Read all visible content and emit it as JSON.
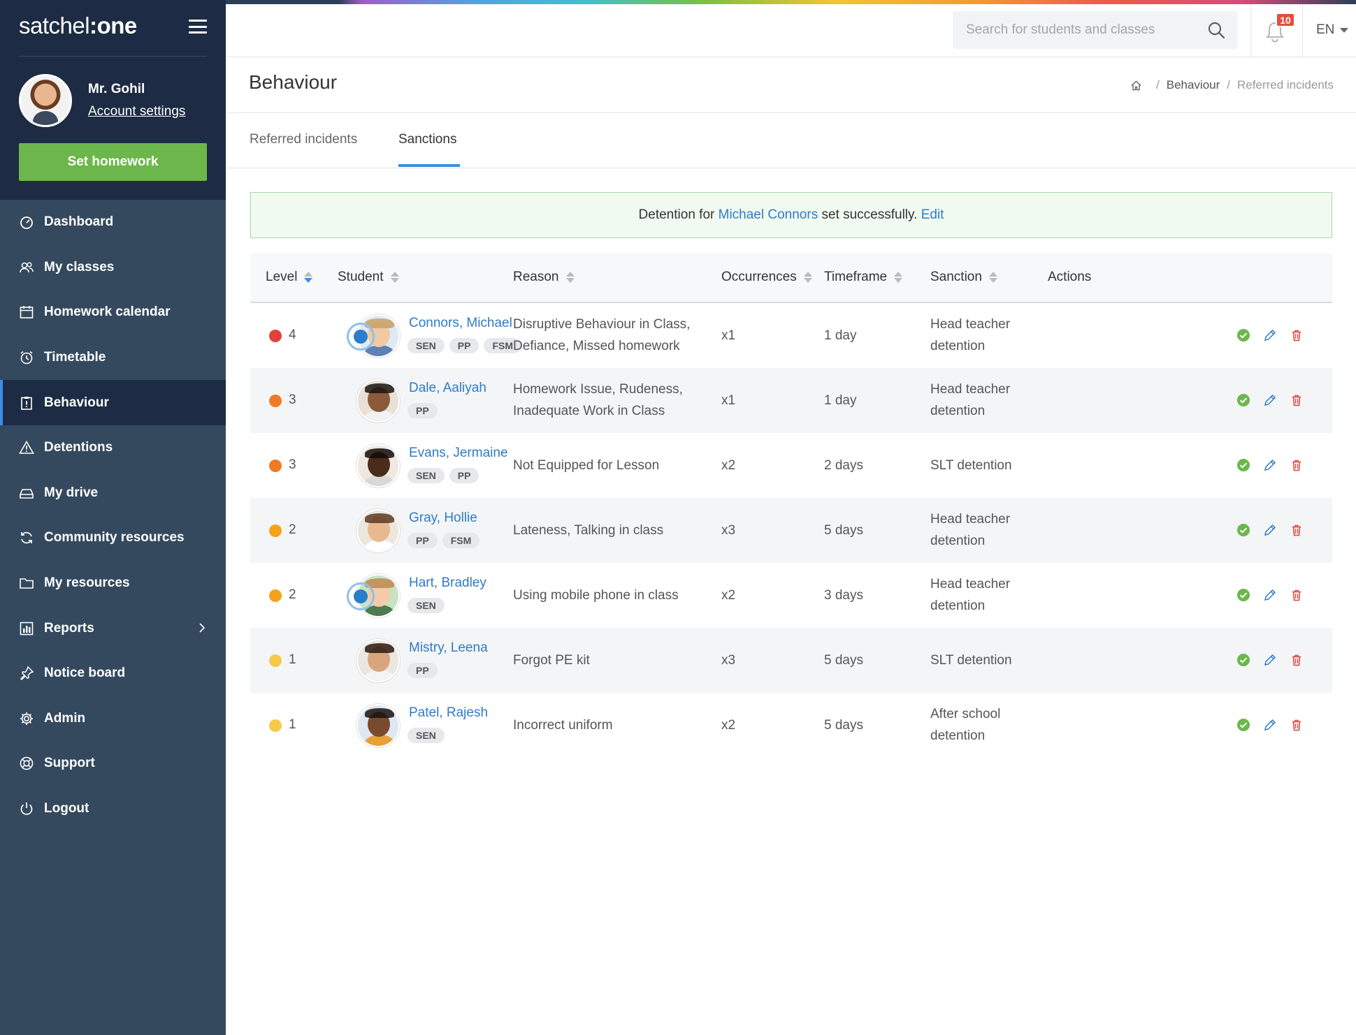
{
  "app": {
    "logo_light": "satchel",
    "logo_sep": ":",
    "logo_bold": "one"
  },
  "user": {
    "name": "Mr. Gohil",
    "account_link": "Account settings"
  },
  "sidebar": {
    "cta": "Set homework",
    "items": [
      {
        "label": "Dashboard",
        "icon": "dashboard-icon"
      },
      {
        "label": "My classes",
        "icon": "users-icon"
      },
      {
        "label": "Homework calendar",
        "icon": "calendar-icon"
      },
      {
        "label": "Timetable",
        "icon": "alarm-clock-icon"
      },
      {
        "label": "Behaviour",
        "icon": "clipboard-icon",
        "active": true
      },
      {
        "label": "Detentions",
        "icon": "warning-icon"
      },
      {
        "label": "My drive",
        "icon": "drive-icon"
      },
      {
        "label": "Community resources",
        "icon": "refresh-icon"
      },
      {
        "label": "My resources",
        "icon": "folder-icon"
      },
      {
        "label": "Reports",
        "icon": "chart-icon",
        "has_chevron": true
      },
      {
        "label": "Notice board",
        "icon": "pin-icon"
      },
      {
        "label": "Admin",
        "icon": "gear-icon"
      },
      {
        "label": "Support",
        "icon": "lifebuoy-icon"
      },
      {
        "label": "Logout",
        "icon": "power-icon"
      }
    ]
  },
  "topbar": {
    "search_placeholder": "Search for students and classes",
    "notification_count": "10",
    "language": "EN"
  },
  "header": {
    "title": "Behaviour",
    "breadcrumb": [
      "Behaviour",
      "Referred incidents"
    ]
  },
  "tabs": [
    {
      "label": "Referred incidents",
      "active": false
    },
    {
      "label": "Sanctions",
      "active": true
    }
  ],
  "alert": {
    "prefix": "Detention for ",
    "student": "Michael Connors",
    "suffix": " set successfully. ",
    "link": "Edit"
  },
  "table": {
    "columns": [
      "Level",
      "Student",
      "Reason",
      "Occurrences",
      "Timeframe",
      "Sanction",
      "Actions"
    ],
    "rows": [
      {
        "level": "4",
        "level_color": "#e0413a",
        "student": "Connors, Michael",
        "tags": [
          "SEN",
          "PP",
          "FSM"
        ],
        "sen": true,
        "reason": [
          "Disruptive Behaviour in Class,",
          "Defiance, Missed homework"
        ],
        "occurrences": "x1",
        "timeframe": "1 day",
        "sanction": [
          "Head teacher",
          "detention"
        ]
      },
      {
        "level": "3",
        "level_color": "#f07a24",
        "student": "Dale, Aaliyah",
        "tags": [
          "PP"
        ],
        "sen": false,
        "reason": [
          "Homework Issue, Rudeness,",
          "Inadequate Work in Class"
        ],
        "occurrences": "x1",
        "timeframe": "1 day",
        "sanction": [
          "Head teacher",
          "detention"
        ]
      },
      {
        "level": "3",
        "level_color": "#f07a24",
        "student": "Evans, Jermaine",
        "tags": [
          "SEN",
          "PP"
        ],
        "sen": false,
        "reason": [
          "Not Equipped for Lesson"
        ],
        "occurrences": "x2",
        "timeframe": "2 days",
        "sanction": [
          "SLT detention"
        ]
      },
      {
        "level": "2",
        "level_color": "#f5a21b",
        "student": "Gray, Hollie",
        "tags": [
          "PP",
          "FSM"
        ],
        "sen": false,
        "reason": [
          "Lateness, Talking in class"
        ],
        "occurrences": "x3",
        "timeframe": "5 days",
        "sanction": [
          "Head teacher",
          "detention"
        ]
      },
      {
        "level": "2",
        "level_color": "#f5a21b",
        "student": "Hart, Bradley",
        "tags": [
          "SEN"
        ],
        "sen": true,
        "reason": [
          "Using mobile phone in class"
        ],
        "occurrences": "x2",
        "timeframe": "3 days",
        "sanction": [
          "Head teacher",
          "detention"
        ]
      },
      {
        "level": "1",
        "level_color": "#f7c948",
        "student": "Mistry, Leena",
        "tags": [
          "PP"
        ],
        "sen": false,
        "reason": [
          "Forgot PE kit"
        ],
        "occurrences": "x3",
        "timeframe": "5 days",
        "sanction": [
          "SLT detention"
        ]
      },
      {
        "level": "1",
        "level_color": "#f7c948",
        "student": "Patel, Rajesh",
        "tags": [
          "SEN"
        ],
        "sen": false,
        "reason": [
          "Incorrect uniform"
        ],
        "occurrences": "x2",
        "timeframe": "5 days",
        "sanction": [
          "After school",
          "detention"
        ]
      }
    ]
  },
  "colors": {
    "sidebar_bg": "#34495e",
    "sidebar_top_bg": "#1d2c44",
    "accent": "#3b8ee6",
    "link": "#2f7bc7",
    "cta_green": "#6cb74c",
    "approve_green": "#6cb74c",
    "delete_red": "#e0413a"
  }
}
